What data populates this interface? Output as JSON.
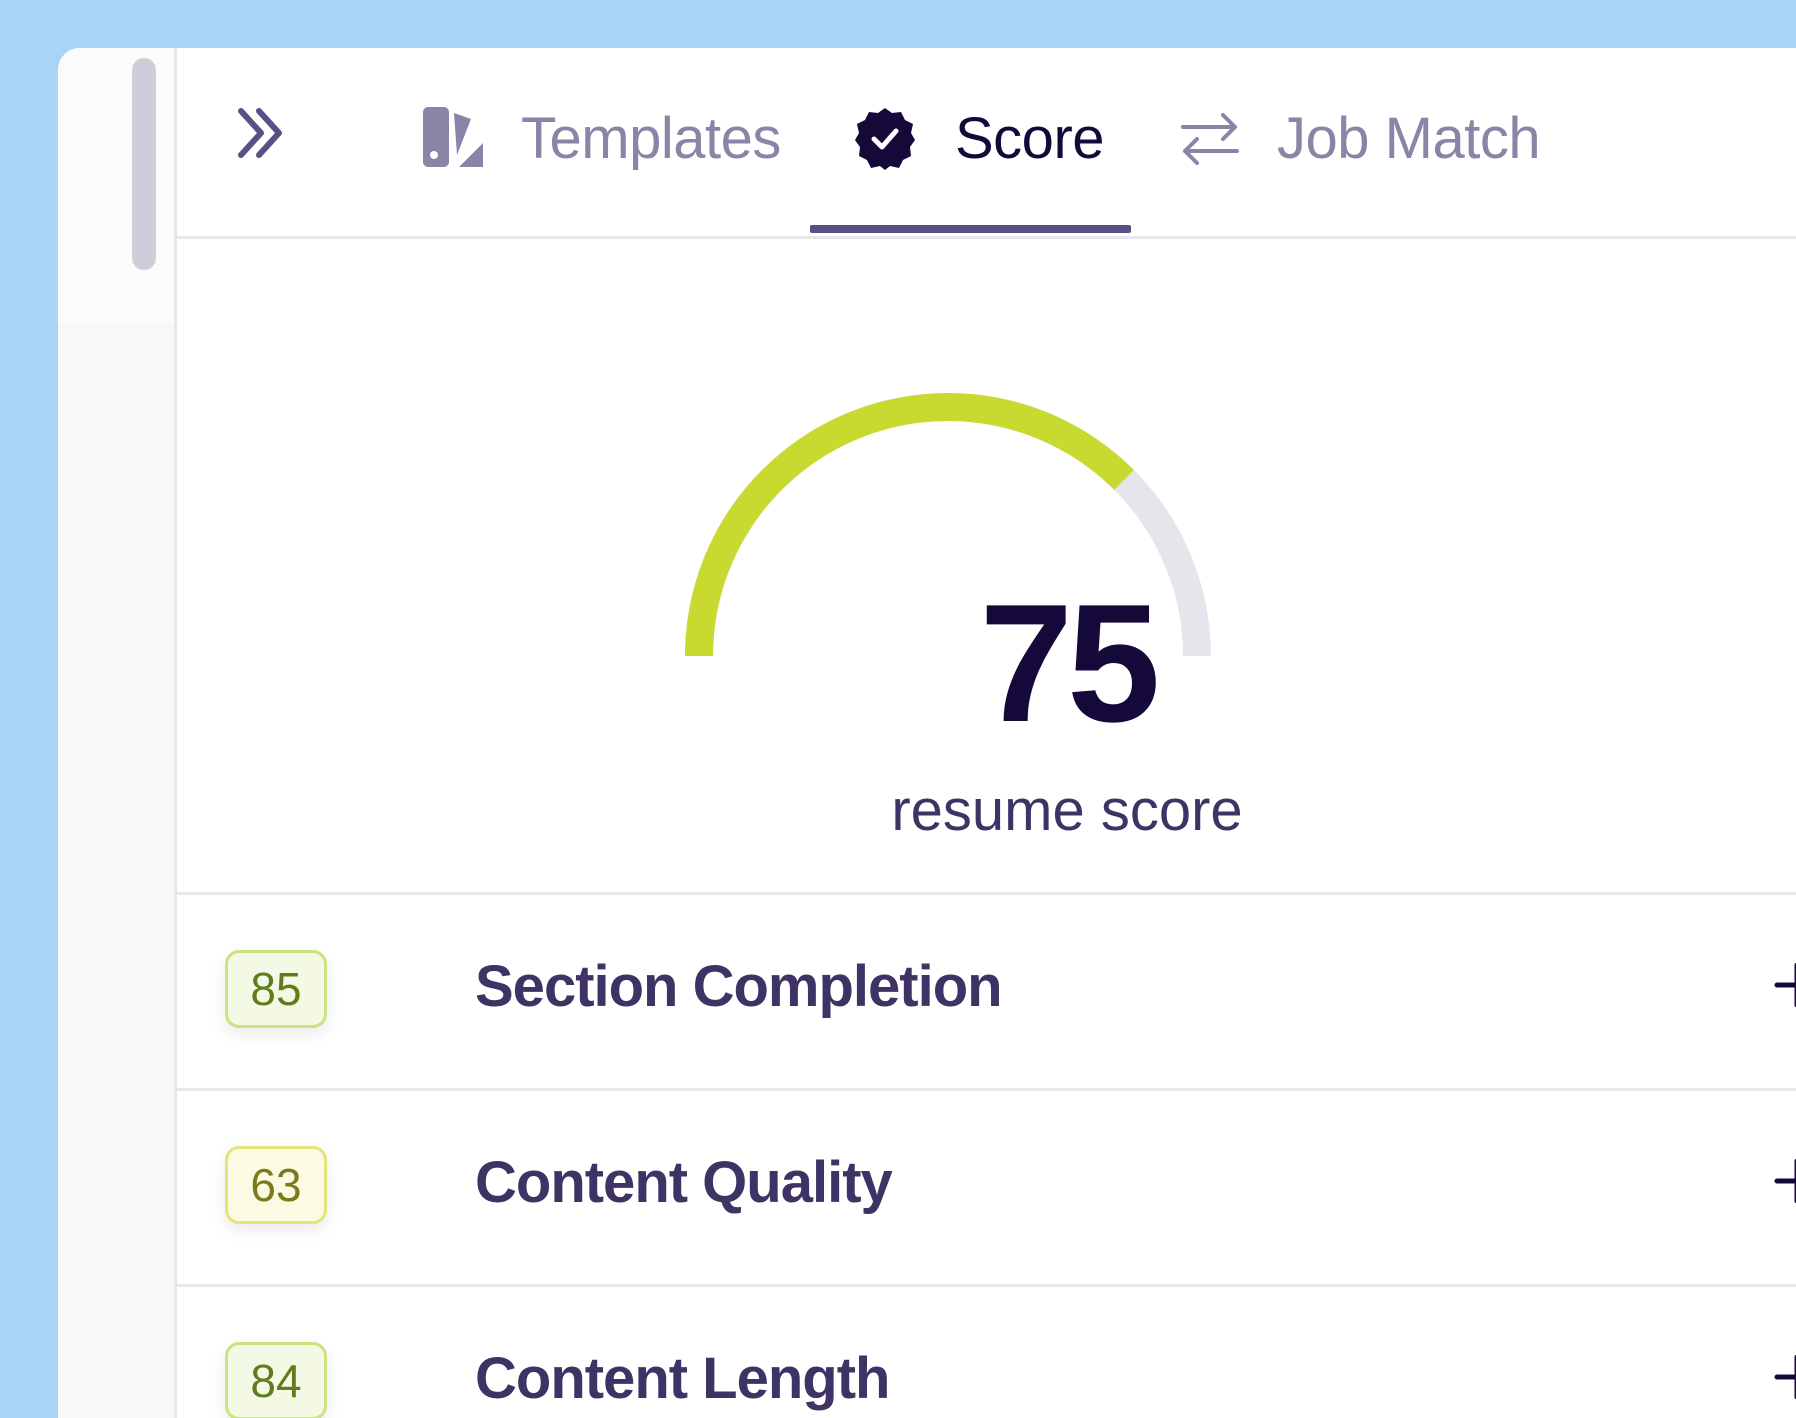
{
  "tabs": {
    "items": [
      {
        "label": "Templates",
        "icon": "templates-icon",
        "active": false
      },
      {
        "label": "Score",
        "icon": "verified-badge-icon",
        "active": true
      },
      {
        "label": "Job Match",
        "icon": "swap-arrows-icon",
        "active": false
      }
    ]
  },
  "score": {
    "value": "75",
    "fraction": 0.75,
    "label": "resume score",
    "colors": {
      "fill": "#c8d930",
      "track": "#e6e5eb",
      "text": "#15093a"
    }
  },
  "sections": [
    {
      "score": "85",
      "title": "Section Completion",
      "badge_bg": "#f4f9e6",
      "badge_border": "#c9e47f",
      "badge_text": "#5f7d1a"
    },
    {
      "score": "63",
      "title": "Content Quality",
      "badge_bg": "#fbfbe4",
      "badge_border": "#e3e47a",
      "badge_text": "#7a7a19"
    },
    {
      "score": "84",
      "title": "Content Length",
      "badge_bg": "#f4f9e6",
      "badge_border": "#c9e47f",
      "badge_text": "#5f7d1a"
    }
  ],
  "colors": {
    "background": "#a9d4f5",
    "accent": "#5c4f86",
    "active_text": "#15093a",
    "inactive_text": "#8a84a6"
  }
}
